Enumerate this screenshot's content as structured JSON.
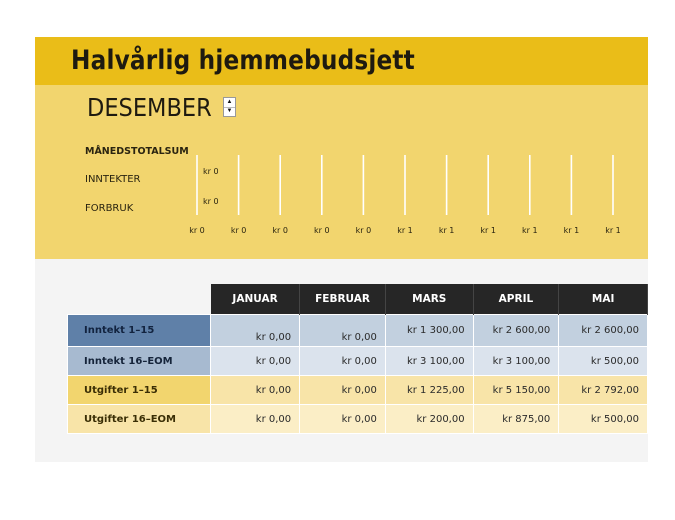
{
  "title": "Halvårlig hjemmebudsjett",
  "selected_month": "DESEMBER",
  "spinner": {
    "up_icon": "spinner-up-icon",
    "down_icon": "spinner-down-icon"
  },
  "summary": {
    "heading": "MÅNEDSTOTALSUM",
    "income_label": "INNTEKTER",
    "expense_label": "FORBRUK",
    "income_value": "kr 0",
    "expense_value": "kr 0"
  },
  "colors": {
    "title_band": "#eabd18",
    "summary_band": "#f2d56e",
    "header_dark": "#262626",
    "income_blue": "#5f80a8",
    "expense_yellow": "#f2d56e"
  },
  "chart_data": {
    "type": "bar",
    "orientation": "horizontal",
    "categories": [
      "INNTEKTER",
      "FORBRUK"
    ],
    "series": [
      {
        "values": [
          0,
          0
        ]
      }
    ],
    "data_labels": [
      "kr 0",
      "kr 0"
    ],
    "x_tick_labels": [
      "kr 0",
      "kr 0",
      "kr 0",
      "kr 0",
      "kr 0",
      "kr 1",
      "kr 1",
      "kr 1",
      "kr 1",
      "kr 1",
      "kr 1"
    ],
    "xlim": [
      0,
      1
    ],
    "grid": true
  },
  "table": {
    "columns": [
      "JANUAR",
      "FEBRUAR",
      "MARS",
      "APRIL",
      "MAI"
    ],
    "rows": [
      {
        "label": "Inntekt 1–15",
        "values": [
          "kr 0,00",
          "kr 0,00",
          "kr 1 300,00",
          "kr 2 600,00",
          "kr 2 600,00"
        ]
      },
      {
        "label": "Inntekt 16–EOM",
        "values": [
          "kr 0,00",
          "kr 0,00",
          "kr 3 100,00",
          "kr 3 100,00",
          "kr 500,00"
        ]
      },
      {
        "label": "Utgifter 1–15",
        "values": [
          "kr 0,00",
          "kr 0,00",
          "kr 1 225,00",
          "kr 5 150,00",
          "kr 2 792,00"
        ]
      },
      {
        "label": "Utgifter 16–EOM",
        "values": [
          "kr 0,00",
          "kr 0,00",
          "kr 200,00",
          "kr 875,00",
          "kr 500,00"
        ]
      }
    ]
  }
}
